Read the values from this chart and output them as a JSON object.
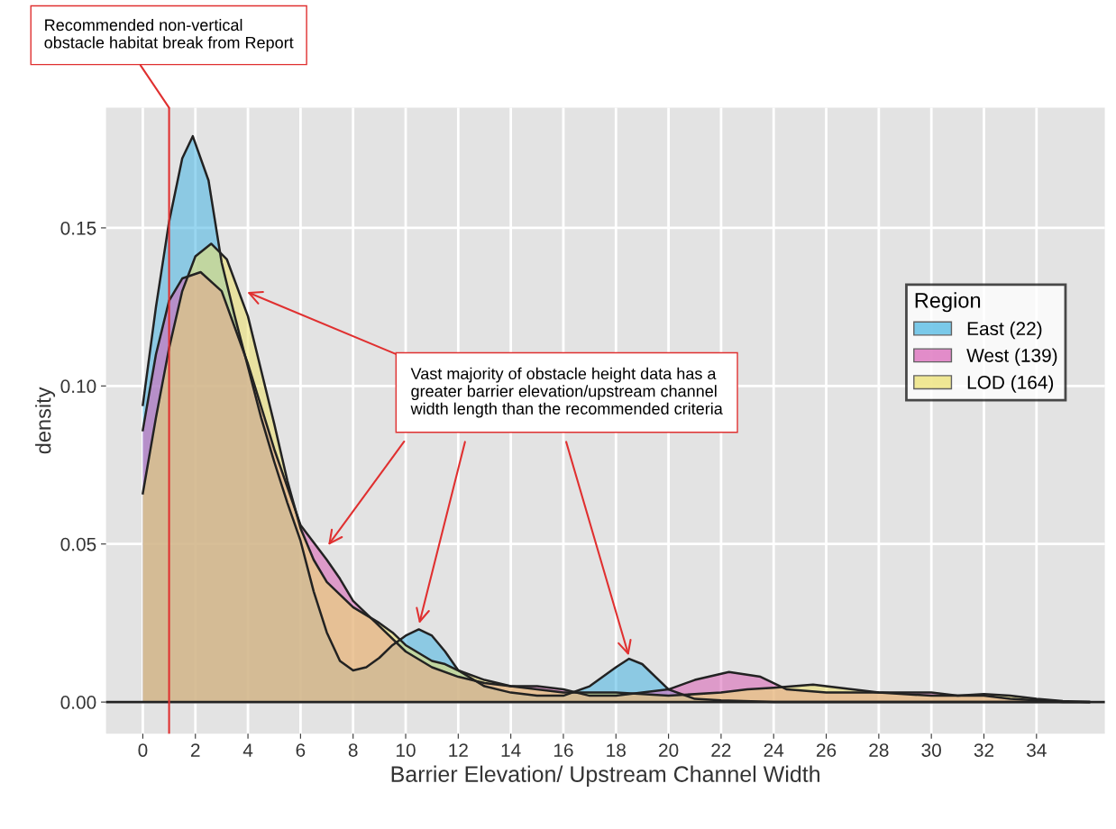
{
  "chart_data": {
    "type": "area",
    "xlabel": "Barrier Elevation/ Upstream Channel Width",
    "ylabel": "density",
    "legend_title": "Region",
    "legend": "right",
    "grid": true,
    "xlim": [
      -1.4,
      36.6
    ],
    "xticks": [
      0,
      2,
      4,
      6,
      8,
      10,
      12,
      14,
      16,
      18,
      20,
      22,
      24,
      26,
      28,
      30,
      32,
      34
    ],
    "ylim": [
      -0.01,
      0.188
    ],
    "yticks": [
      {
        "value": 0,
        "label": "0.00"
      },
      {
        "value": 0.05,
        "label": "0.05"
      },
      {
        "value": 0.1,
        "label": "0.10"
      },
      {
        "value": 0.15,
        "label": "0.15"
      }
    ],
    "series": [
      {
        "name": "East (22)",
        "color": "#45b5e3",
        "x": [
          0,
          0.5,
          1,
          1.5,
          1.9,
          2.5,
          3,
          3.5,
          4,
          4.5,
          5,
          5.5,
          6,
          6.5,
          7,
          7.5,
          8,
          8.5,
          9,
          9.5,
          10,
          10.5,
          11,
          11.5,
          12,
          13,
          14,
          15,
          16,
          17,
          18,
          18.5,
          19,
          20,
          21,
          22,
          24,
          28,
          32,
          36
        ],
        "values": [
          0.094,
          0.125,
          0.152,
          0.172,
          0.179,
          0.165,
          0.139,
          0.122,
          0.106,
          0.09,
          0.076,
          0.063,
          0.051,
          0.035,
          0.022,
          0.013,
          0.01,
          0.011,
          0.014,
          0.018,
          0.021,
          0.023,
          0.021,
          0.016,
          0.01,
          0.005,
          0.003,
          0.002,
          0.002,
          0.005,
          0.011,
          0.0137,
          0.012,
          0.004,
          0.001,
          0.0005,
          0,
          0,
          0,
          0
        ]
      },
      {
        "name": "West (139)",
        "color": "#d95fb5",
        "x": [
          0,
          0.5,
          1,
          1.5,
          2.2,
          3,
          4,
          5,
          6,
          7,
          7.5,
          8,
          8.5,
          9,
          10,
          11,
          12,
          13,
          14,
          15,
          16,
          17,
          18,
          19,
          20,
          21,
          22.3,
          23.5,
          24.5,
          26,
          27,
          28,
          29,
          30,
          31,
          32,
          33,
          34,
          35,
          36
        ],
        "values": [
          0.086,
          0.11,
          0.127,
          0.134,
          0.136,
          0.13,
          0.107,
          0.08,
          0.056,
          0.045,
          0.039,
          0.032,
          0.028,
          0.024,
          0.016,
          0.011,
          0.008,
          0.006,
          0.005,
          0.005,
          0.004,
          0.002,
          0.002,
          0.003,
          0.004,
          0.007,
          0.0095,
          0.008,
          0.004,
          0.003,
          0.003,
          0.003,
          0.003,
          0.003,
          0.002,
          0.002,
          0.001,
          0.0005,
          0,
          0
        ]
      },
      {
        "name": "LOD (164)",
        "color": "#ece06a",
        "x": [
          0,
          0.5,
          1,
          1.5,
          2,
          2.6,
          3.2,
          4,
          4.5,
          5,
          5.5,
          6,
          6.5,
          7,
          8,
          9,
          9.5,
          10,
          11,
          11.5,
          12,
          13,
          14,
          15,
          16,
          18,
          20,
          22,
          23,
          24,
          25.5,
          27,
          28,
          30,
          31,
          32,
          33,
          34,
          35,
          36
        ],
        "values": [
          0.066,
          0.09,
          0.112,
          0.13,
          0.141,
          0.145,
          0.14,
          0.122,
          0.105,
          0.088,
          0.07,
          0.055,
          0.045,
          0.038,
          0.03,
          0.025,
          0.022,
          0.018,
          0.013,
          0.012,
          0.01,
          0.007,
          0.005,
          0.004,
          0.003,
          0.003,
          0.002,
          0.003,
          0.004,
          0.0045,
          0.0055,
          0.004,
          0.003,
          0.002,
          0.002,
          0.0025,
          0.002,
          0.001,
          0.0003,
          0
        ]
      }
    ],
    "ref_lines": [
      {
        "axis": "x",
        "value": 1,
        "label": "Recommended non-vertical\nobstacle habitat break from Report",
        "color": "#e03030"
      }
    ],
    "annotations": [
      "Vast majority of obstacle height data has a\ngreater barrier elevation/upstream channel\nwidth length than the recommended criteria"
    ]
  }
}
